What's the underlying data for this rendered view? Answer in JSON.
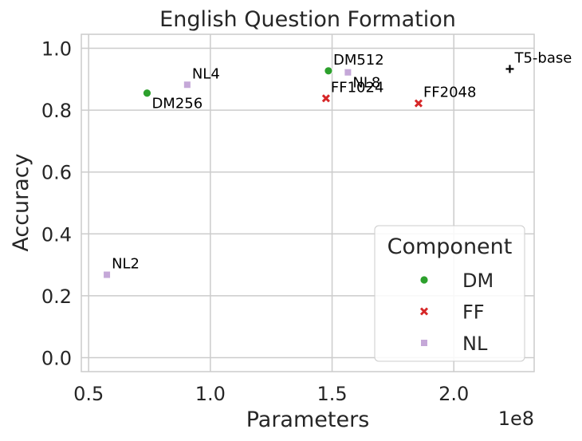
{
  "chart_data": {
    "type": "scatter",
    "title": "English Question Formation",
    "xlabel": "Parameters",
    "ylabel": "Accuracy",
    "x_offset_text": "1e8",
    "xlim": [
      0.47,
      2.33
    ],
    "ylim": [
      -0.045,
      1.045
    ],
    "xticks": [
      0.5,
      1.0,
      1.5,
      2.0
    ],
    "xtick_labels": [
      "0.5",
      "1.0",
      "1.5",
      "2.0"
    ],
    "yticks": [
      0.0,
      0.2,
      0.4,
      0.6,
      0.8,
      1.0
    ],
    "ytick_labels": [
      "0.0",
      "0.2",
      "0.4",
      "0.6",
      "0.8",
      "1.0"
    ],
    "grid": true,
    "legend": {
      "title": "Component",
      "placement": "lower-right"
    },
    "series": [
      {
        "name": "DM",
        "marker": "circle",
        "color": "#2ca02c",
        "points": [
          {
            "label": "DM256",
            "x": 0.74,
            "y": 0.855,
            "label_pos": "below-right"
          },
          {
            "label": "DM512",
            "x": 1.485,
            "y": 0.927,
            "label_pos": "above-right"
          }
        ]
      },
      {
        "name": "FF",
        "marker": "x",
        "color": "#d62728",
        "points": [
          {
            "label": "FF1024",
            "x": 1.475,
            "y": 0.838,
            "label_pos": "above-right"
          },
          {
            "label": "FF2048",
            "x": 1.855,
            "y": 0.822,
            "label_pos": "above-right"
          }
        ]
      },
      {
        "name": "NL",
        "marker": "square",
        "color": "#c5a8d8",
        "points": [
          {
            "label": "NL2",
            "x": 0.575,
            "y": 0.268,
            "label_pos": "above-right"
          },
          {
            "label": "NL4",
            "x": 0.905,
            "y": 0.882,
            "label_pos": "above-right"
          },
          {
            "label": "NL8",
            "x": 1.565,
            "y": 0.922,
            "label_pos": "below-right"
          }
        ]
      }
    ],
    "extra_points": [
      {
        "label": "T5-base",
        "x": 2.23,
        "y": 0.933,
        "marker": "plus",
        "color": "#000000",
        "label_pos": "above-right"
      }
    ]
  }
}
